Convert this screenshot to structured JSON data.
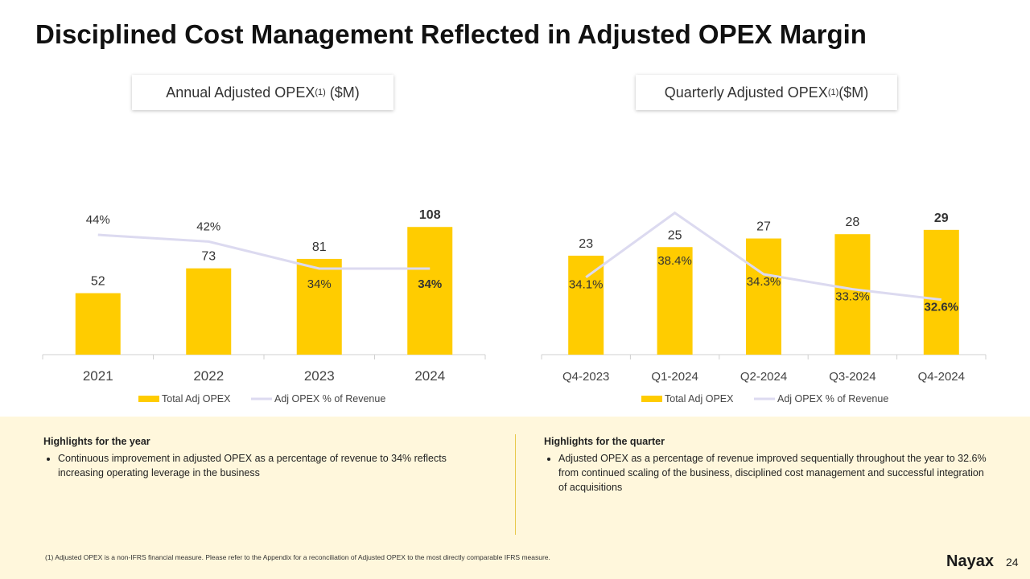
{
  "title": "Disciplined Cost Management Reflected in Adjusted OPEX Margin",
  "colors": {
    "bar": "#ffcc00",
    "line": "#dcdaf0",
    "band": "#fff7dc"
  },
  "chart_data": [
    {
      "type": "bar+line",
      "title": "Annual Adjusted OPEX",
      "title_sup": "(1)",
      "title_unit": "($M)",
      "categories": [
        "2021",
        "2022",
        "2023",
        "2024"
      ],
      "series": [
        {
          "name": "Total Adj OPEX",
          "type": "bar",
          "values": [
            52,
            73,
            81,
            108
          ],
          "labels": [
            "52",
            "73",
            "81",
            "108"
          ]
        },
        {
          "name": "Adj OPEX  % of Revenue",
          "type": "line",
          "values": [
            44,
            42,
            34,
            34
          ],
          "labels": [
            "44%",
            "42%",
            "34%",
            "34%"
          ]
        }
      ]
    },
    {
      "type": "bar+line",
      "title": "Quarterly Adjusted OPEX ",
      "title_sup": "(1)",
      "title_unit": " ($M)",
      "categories": [
        "Q4-2023",
        "Q1-2024",
        "Q2-2024",
        "Q3-2024",
        "Q4-2024"
      ],
      "series": [
        {
          "name": "Total Adj OPEX",
          "type": "bar",
          "values": [
            23,
            25,
            27,
            28,
            29
          ],
          "labels": [
            "23",
            "25",
            "27",
            "28",
            "29"
          ]
        },
        {
          "name": "Adj OPEX  % of Revenue",
          "type": "line",
          "values": [
            34.1,
            38.4,
            34.3,
            33.3,
            32.6
          ],
          "labels": [
            "34.1%",
            "38.4%",
            "34.3%",
            "33.3%",
            "32.6%"
          ]
        }
      ]
    }
  ],
  "highlights": [
    {
      "heading": "Highlights for the year",
      "bullet": "Continuous improvement in adjusted OPEX as a percentage of revenue to 34% reflects increasing operating leverage in the business"
    },
    {
      "heading": "Highlights for the quarter",
      "bullet": "Adjusted OPEX as a percentage of revenue improved sequentially throughout the year to 32.6% from continued scaling of the business, disciplined cost management and successful integration of acquisitions"
    }
  ],
  "footnote": "(1) Adjusted OPEX is a non-IFRS financial measure. Please refer to the Appendix for a reconciliation of Adjusted OPEX to the most directly comparable IFRS measure.",
  "logo": "Nayax",
  "page_number": "24"
}
